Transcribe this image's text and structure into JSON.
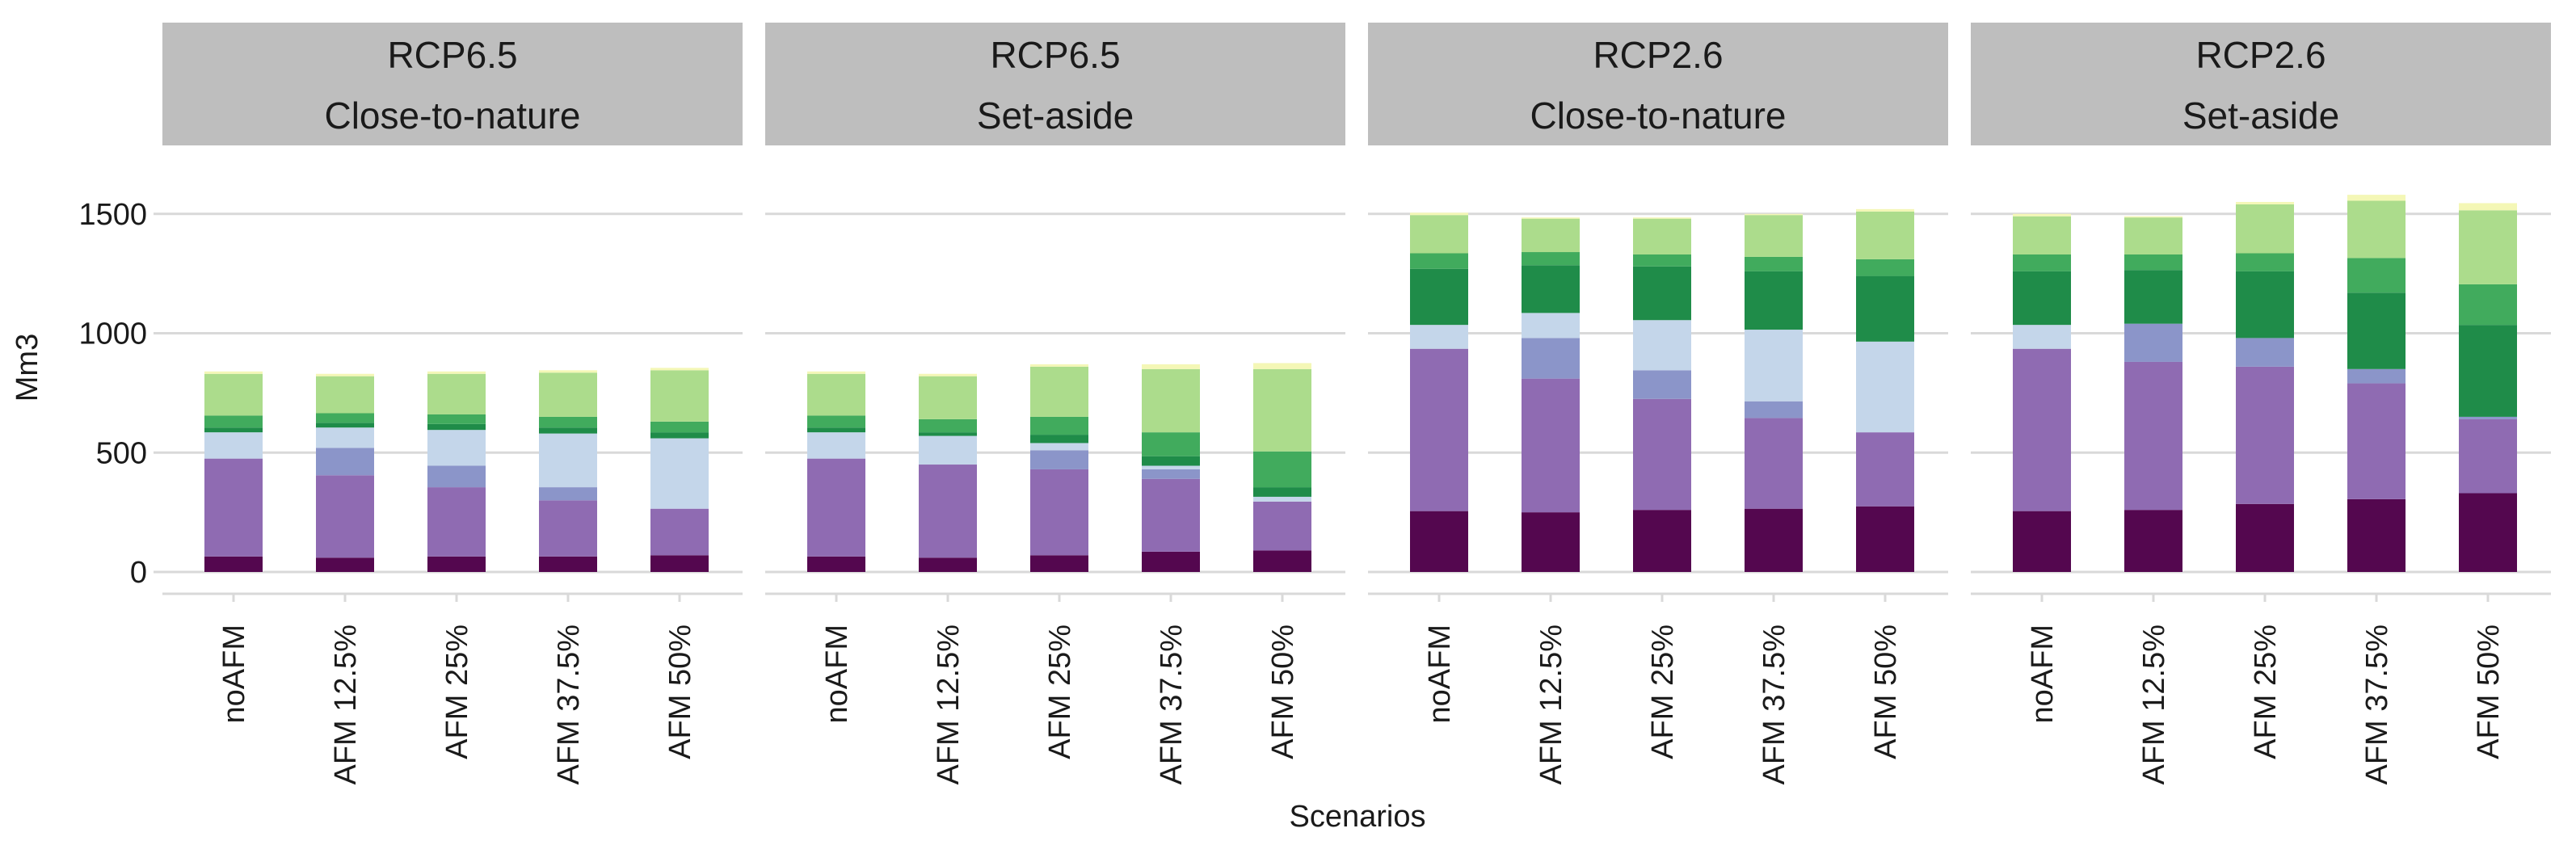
{
  "chart_data": {
    "type": "bar",
    "stacked": true,
    "xlabel": "Scenarios",
    "ylabel": "Mm3",
    "ylim": [
      0,
      1600
    ],
    "yticks": [
      0,
      500,
      1000,
      1500
    ],
    "grid": "horizontal",
    "legend": "none",
    "categories": [
      "noAFM",
      "AFM 12.5%",
      "AFM 25%",
      "AFM 37.5%",
      "AFM 50%"
    ],
    "segment_colors": [
      "#54074f",
      "#8f6bb2",
      "#8b95c9",
      "#c4d6ea",
      "#1f8c49",
      "#41ab5d",
      "#acdc8c",
      "#f4f7b6"
    ],
    "panels": [
      {
        "strip": [
          "RCP6.5",
          "Close-to-nature"
        ],
        "stacks": [
          [
            65,
            410,
            0,
            110,
            20,
            50,
            175,
            10
          ],
          [
            60,
            345,
            115,
            85,
            20,
            40,
            155,
            10
          ],
          [
            65,
            290,
            90,
            150,
            25,
            40,
            170,
            10
          ],
          [
            65,
            235,
            55,
            225,
            25,
            45,
            185,
            10
          ],
          [
            70,
            195,
            0,
            295,
            25,
            45,
            215,
            10
          ]
        ]
      },
      {
        "strip": [
          "RCP6.5",
          "Set-aside"
        ],
        "stacks": [
          [
            65,
            410,
            0,
            110,
            20,
            50,
            175,
            10
          ],
          [
            60,
            390,
            0,
            120,
            15,
            55,
            180,
            10
          ],
          [
            70,
            360,
            80,
            30,
            35,
            75,
            210,
            10
          ],
          [
            85,
            305,
            40,
            15,
            40,
            100,
            265,
            20
          ],
          [
            90,
            205,
            0,
            20,
            40,
            150,
            345,
            25
          ]
        ]
      },
      {
        "strip": [
          "RCP2.6",
          "Close-to-nature"
        ],
        "stacks": [
          [
            255,
            680,
            0,
            100,
            235,
            65,
            160,
            10
          ],
          [
            250,
            560,
            170,
            105,
            200,
            55,
            140,
            5
          ],
          [
            260,
            465,
            120,
            210,
            225,
            50,
            150,
            5
          ],
          [
            265,
            380,
            70,
            300,
            245,
            60,
            175,
            5
          ],
          [
            275,
            310,
            0,
            380,
            275,
            70,
            200,
            10
          ]
        ]
      },
      {
        "strip": [
          "RCP2.6",
          "Set-aside"
        ],
        "stacks": [
          [
            255,
            680,
            0,
            100,
            225,
            70,
            160,
            10
          ],
          [
            260,
            620,
            160,
            0,
            225,
            65,
            155,
            5
          ],
          [
            285,
            575,
            120,
            0,
            280,
            75,
            205,
            10
          ],
          [
            305,
            485,
            60,
            0,
            320,
            145,
            240,
            25
          ],
          [
            330,
            310,
            10,
            0,
            385,
            170,
            310,
            30
          ]
        ]
      }
    ]
  }
}
